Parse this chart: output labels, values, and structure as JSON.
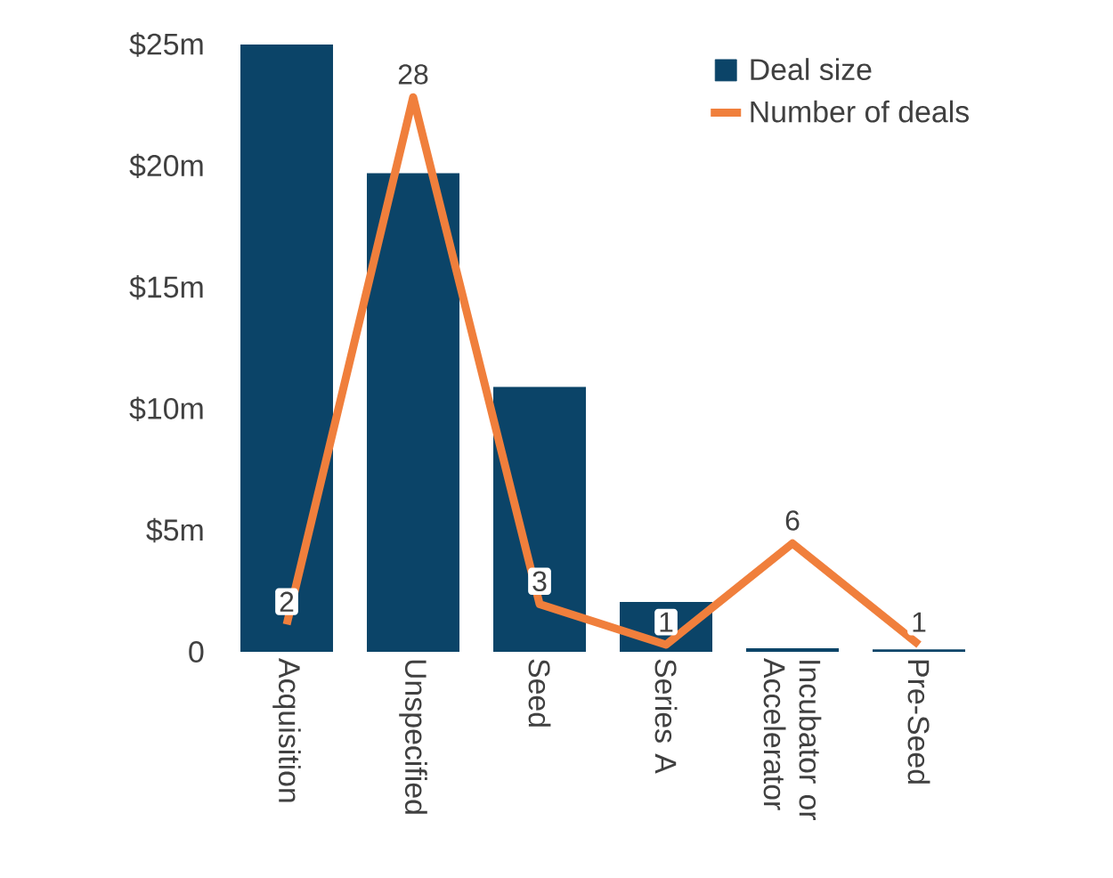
{
  "chart_data": {
    "type": "bar",
    "categories": [
      "Acquisition",
      "Unspecified",
      "Seed",
      "Series A",
      "Incubator or Accelerator",
      "Pre-Seed"
    ],
    "series": [
      {
        "name": "Deal size",
        "color": "#0b4468",
        "values": [
          25,
          19.7,
          10.9,
          2.05,
          0.15,
          0.1
        ]
      },
      {
        "name": "Number of deals",
        "type": "line",
        "axis": "y2",
        "color": "#f07f3c",
        "values": [
          2,
          28,
          3,
          1,
          6,
          1
        ],
        "value_labels": [
          "2",
          "28",
          "3",
          "1",
          "6",
          "1"
        ]
      }
    ],
    "ylim": [
      0,
      25
    ],
    "yticks": [
      0,
      {
        "value": 5,
        "label": "$5m"
      },
      {
        "value": 10,
        "label": "$10m"
      },
      {
        "value": 15,
        "label": "$15m"
      },
      {
        "value": 20,
        "label": "$20m"
      },
      {
        "value": 25,
        "label": "$25m"
      }
    ],
    "y2lim": [
      0.65,
      30.6
    ],
    "legend": "top right",
    "grid": false
  }
}
